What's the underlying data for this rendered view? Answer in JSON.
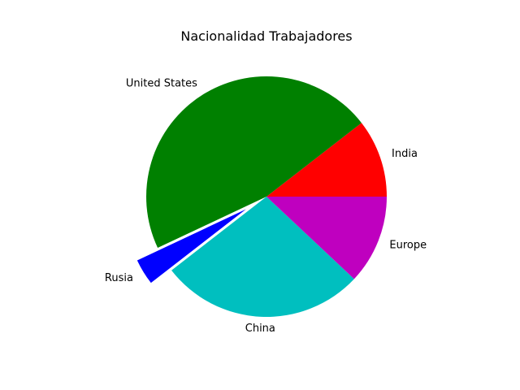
{
  "chart_data": {
    "type": "pie",
    "title": "Nacionalidad Trabajadores",
    "slices": [
      {
        "label": "India",
        "value": 10.5,
        "color": "#ff0000",
        "explode": 0
      },
      {
        "label": "United States",
        "value": 46.5,
        "color": "#008000",
        "explode": 0
      },
      {
        "label": "Rusia",
        "value": 3.5,
        "color": "#0000ff",
        "explode": 0.2
      },
      {
        "label": "China",
        "value": 27.5,
        "color": "#00bfbf",
        "explode": 0
      },
      {
        "label": "Europe",
        "value": 12,
        "color": "#bf00bf",
        "explode": 0
      }
    ],
    "start_angle_deg": 0,
    "direction": "counterclockwise",
    "legend": "none"
  }
}
